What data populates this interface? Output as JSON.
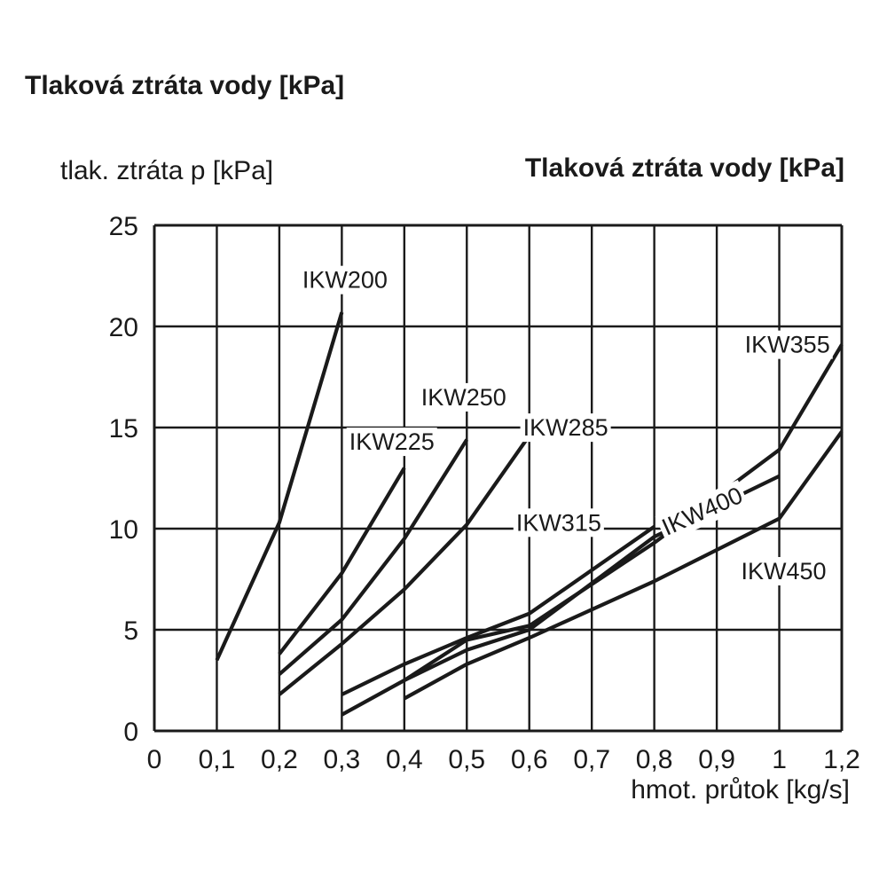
{
  "page_title": "Tlaková ztráta vody [kPa]",
  "chart_data": {
    "type": "line",
    "title": "Tlaková ztráta vody [kPa]",
    "xlabel": "hmot. průtok [kg/s]",
    "ylabel": "tlak. ztráta p [kPa]",
    "xlim": [
      0,
      1.1
    ],
    "ylim": [
      0,
      25
    ],
    "x_ticks": [
      "0",
      "0,1",
      "0,2",
      "0,3",
      "0,4",
      "0,5",
      "0,6",
      "0,7",
      "0,8",
      "0,9",
      "1",
      "1,2"
    ],
    "y_ticks": [
      "0",
      "5",
      "10",
      "15",
      "20",
      "25"
    ],
    "grid": true,
    "series": [
      {
        "name": "IKW200",
        "x": [
          0.1,
          0.2,
          0.3
        ],
        "y": [
          3.5,
          10.3,
          20.7
        ]
      },
      {
        "name": "IKW225",
        "x": [
          0.2,
          0.3,
          0.4
        ],
        "y": [
          3.8,
          7.8,
          13.0
        ]
      },
      {
        "name": "IKW250",
        "x": [
          0.2,
          0.3,
          0.4,
          0.5
        ],
        "y": [
          2.8,
          5.5,
          9.5,
          14.4
        ]
      },
      {
        "name": "IKW285",
        "x": [
          0.2,
          0.3,
          0.4,
          0.5,
          0.6
        ],
        "y": [
          1.8,
          4.3,
          7.0,
          10.2,
          14.6
        ]
      },
      {
        "name": "IKW315",
        "x": [
          0.3,
          0.4,
          0.5,
          0.6,
          0.8
        ],
        "y": [
          1.8,
          3.3,
          4.6,
          5.8,
          10.1
        ]
      },
      {
        "name": "IKW355",
        "x": [
          0.4,
          0.5,
          0.6,
          0.8,
          1.0,
          1.1
        ],
        "y": [
          2.5,
          4.5,
          5.2,
          9.3,
          13.9,
          19.1
        ]
      },
      {
        "name": "IKW400",
        "x": [
          0.3,
          0.4,
          0.5,
          0.6,
          0.8,
          1.0
        ],
        "y": [
          0.8,
          2.5,
          4.0,
          5.0,
          9.6,
          12.6
        ]
      },
      {
        "name": "IKW450",
        "x": [
          0.4,
          0.5,
          0.6,
          0.8,
          1.0,
          1.1
        ],
        "y": [
          1.6,
          3.3,
          4.6,
          7.4,
          10.5,
          14.8
        ]
      }
    ],
    "annotations": [
      "IKW200",
      "IKW225",
      "IKW250",
      "IKW285",
      "IKW315",
      "IKW355",
      "IKW400",
      "IKW450"
    ]
  }
}
